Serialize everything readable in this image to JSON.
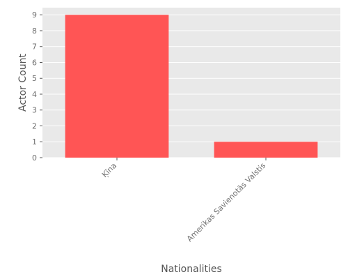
{
  "chart_data": {
    "type": "bar",
    "title": "",
    "xlabel": "Nationalities",
    "ylabel": "Actor Count",
    "categories": [
      "Ķīna",
      "Amerikas Savienotās Valstis"
    ],
    "values": [
      9,
      1
    ],
    "ylim": [
      0,
      9.45
    ],
    "yticks": [
      0,
      1,
      2,
      3,
      4,
      5,
      6,
      7,
      8,
      9
    ],
    "grid": true,
    "legend": "none",
    "bar_color": "#ff5555",
    "background_color": "#e9e9e9",
    "grid_color": "#ffffff"
  }
}
